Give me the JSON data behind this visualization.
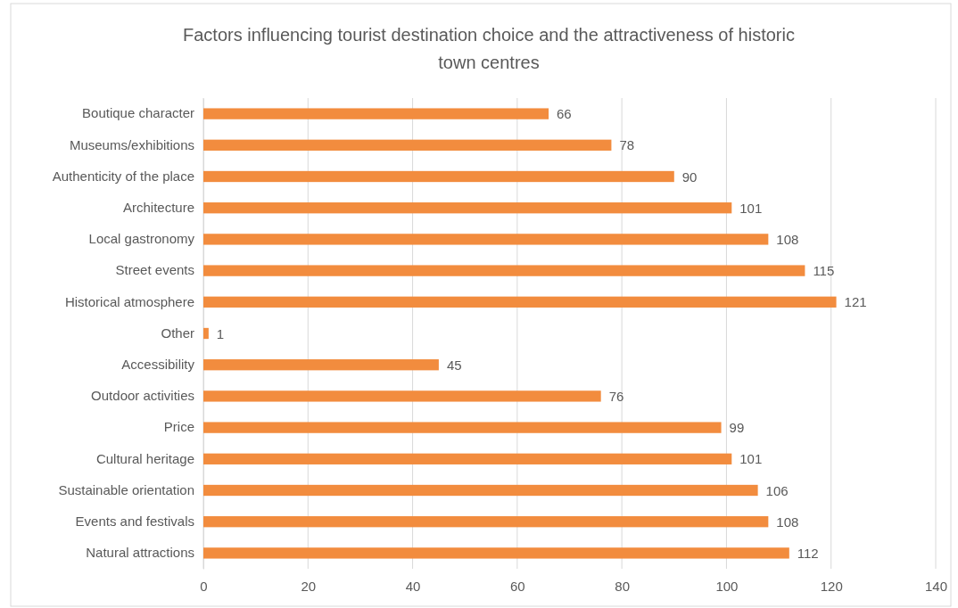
{
  "chart_data": {
    "type": "bar",
    "orientation": "horizontal",
    "title": "Factors influencing tourist destination choice and the attractiveness of historic town centres",
    "categories": [
      "Boutique character",
      "Museums/exhibitions",
      "Authenticity of the place",
      "Architecture",
      "Local gastronomy",
      "Street events",
      "Historical atmosphere",
      "Other",
      "Accessibility",
      "Outdoor activities",
      "Price",
      "Cultural heritage",
      "Sustainable orientation",
      "Events and festivals",
      "Natural attractions"
    ],
    "values": [
      66,
      78,
      90,
      101,
      108,
      115,
      121,
      1,
      45,
      76,
      99,
      101,
      106,
      108,
      112
    ],
    "color": "#f28c3e",
    "xlim": [
      0,
      140
    ],
    "xticks": [
      0,
      20,
      40,
      60,
      80,
      100,
      120,
      140
    ],
    "grid": "x",
    "data_labels": true
  }
}
